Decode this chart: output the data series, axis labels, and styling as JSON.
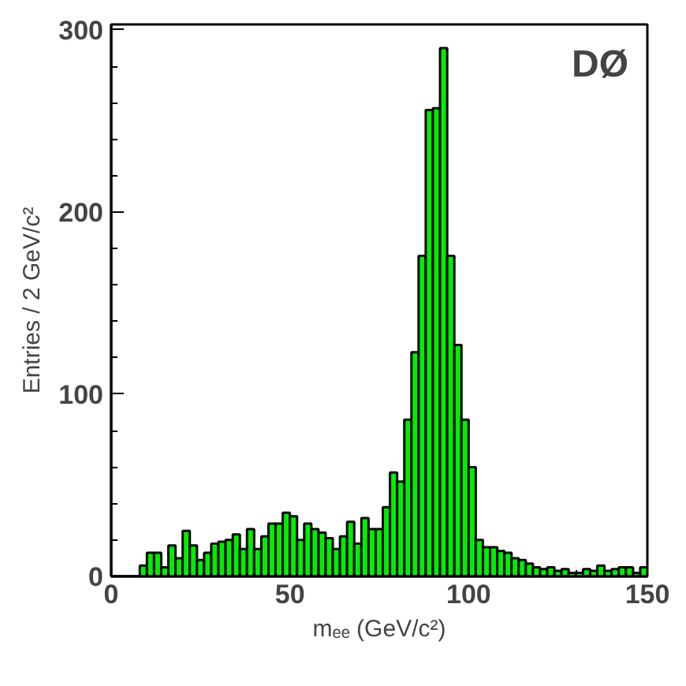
{
  "chart_data": {
    "type": "histogram",
    "xlabel": "mₑₑ (GeV/c²)",
    "ylabel": "Entries / 2 GeV/c²",
    "annotations": [
      "DØ"
    ],
    "color": "#00ee00",
    "bins": [
      0,
      2,
      4,
      6,
      8,
      10,
      12,
      14,
      16,
      18,
      20,
      22,
      24,
      26,
      28,
      30,
      32,
      34,
      36,
      38,
      40,
      42,
      44,
      46,
      48,
      50,
      52,
      54,
      56,
      58,
      60,
      62,
      64,
      66,
      68,
      70,
      72,
      74,
      76,
      78,
      80,
      82,
      84,
      86,
      88,
      90,
      92,
      94,
      96,
      98,
      100,
      102,
      104,
      106,
      108,
      110,
      112,
      114,
      116,
      118,
      120,
      122,
      124,
      126,
      128,
      130,
      132,
      134,
      136,
      138,
      140,
      142,
      144,
      146,
      148,
      150
    ],
    "values": [
      0,
      0,
      0,
      0,
      6,
      13,
      13,
      5,
      17,
      10,
      25,
      17,
      9,
      13,
      18,
      19,
      20,
      23,
      15,
      26,
      15,
      22,
      29,
      29,
      35,
      33,
      20,
      29,
      26,
      24,
      21,
      15,
      22,
      30,
      18,
      32,
      26,
      26,
      38,
      57,
      52,
      86,
      123,
      176,
      256,
      257,
      290,
      176,
      127,
      86,
      60,
      20,
      16,
      16,
      14,
      13,
      10,
      9,
      7,
      5,
      4,
      5,
      3,
      4,
      2,
      2,
      4,
      3,
      6,
      3,
      4,
      5,
      5,
      2,
      5
    ],
    "xlim": [
      0,
      150
    ],
    "xticks": [
      0,
      50,
      100,
      150
    ],
    "ylim": [
      0,
      303
    ],
    "yticks": [
      0,
      100,
      200,
      300
    ],
    "grid": false
  }
}
